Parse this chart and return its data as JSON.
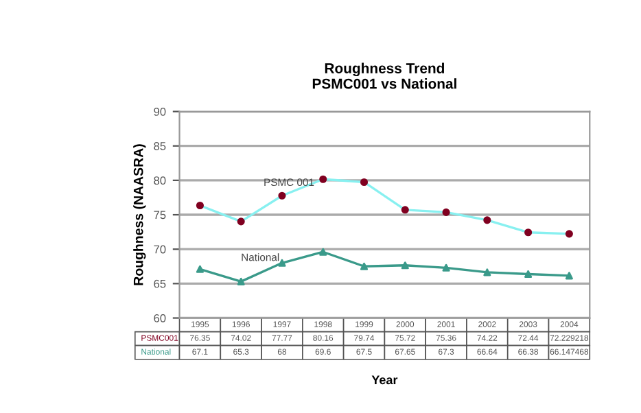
{
  "chart_data": {
    "type": "line",
    "title": "Roughness Trend\nPSMC001 vs National",
    "xlabel": "Year",
    "ylabel": "Roughness (NAASRA)",
    "categories": [
      "1995",
      "1996",
      "1997",
      "1998",
      "1999",
      "2000",
      "2001",
      "2002",
      "2003",
      "2004"
    ],
    "series": [
      {
        "name": "PSMC001",
        "color": "#88f0f0",
        "colors": [
          "#800020",
          "#800020",
          "#800020",
          "#800020",
          "#800020",
          "#800020",
          "#800020",
          "#800020",
          "#800020",
          "#800020"
        ],
        "marker": "circle",
        "values": [
          76.35,
          74.02,
          77.77,
          80.16,
          79.74,
          75.72,
          75.36,
          74.22,
          72.44,
          72.229218
        ]
      },
      {
        "name": "National",
        "color": "#3a9a8a",
        "marker": "triangle",
        "values": [
          67.1,
          65.3,
          68,
          69.6,
          67.5,
          67.65,
          67.3,
          66.64,
          66.38,
          66.147468
        ]
      }
    ],
    "annotations": [
      "PSMC 001",
      "National"
    ],
    "ylim": [
      60,
      90
    ],
    "yticks": [
      60,
      65,
      70,
      75,
      80,
      85,
      90
    ],
    "grid": "y",
    "legend": false,
    "data_labels": true
  }
}
